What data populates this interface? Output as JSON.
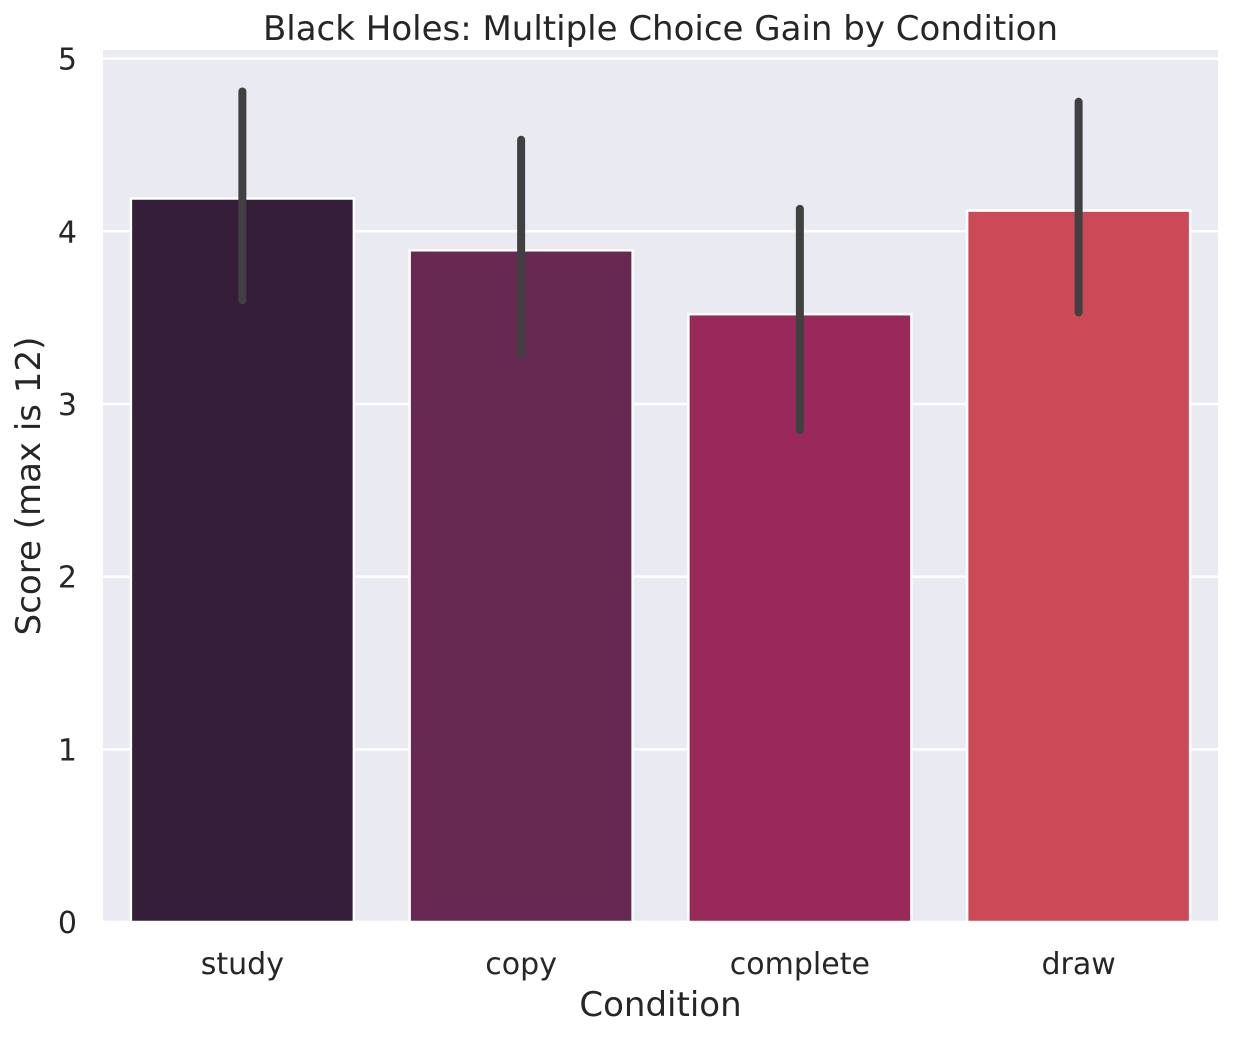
{
  "chart_data": {
    "type": "bar",
    "title": "Black Holes: Multiple Choice Gain by Condition",
    "xlabel": "Condition",
    "ylabel": "Score (max is 12)",
    "categories": [
      "study",
      "copy",
      "complete",
      "draw"
    ],
    "values": [
      4.19,
      3.89,
      3.52,
      4.12
    ],
    "error_low": [
      3.6,
      3.29,
      2.85,
      3.53
    ],
    "error_high": [
      4.81,
      4.53,
      4.13,
      4.75
    ],
    "ylim": [
      0,
      5.05
    ],
    "yticks": [
      "0",
      "1",
      "2",
      "3",
      "4",
      "5"
    ],
    "grid": true,
    "colors": {
      "bars": [
        "#341e39",
        "#652952",
        "#98295a",
        "#cc4a57"
      ],
      "error_bar": "#404040",
      "plot_bg": "#eaeaf2",
      "grid": "#ffffff"
    }
  }
}
